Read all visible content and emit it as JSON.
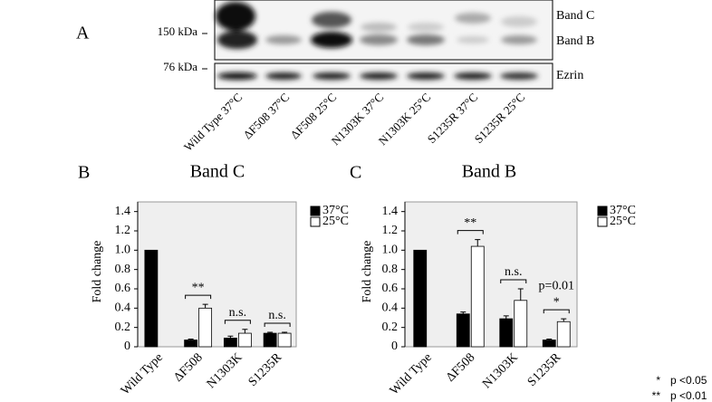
{
  "panel_a": {
    "label": "A",
    "markers": [
      "150 kDa",
      "76 kDa"
    ],
    "bands": [
      "Band C",
      "Band B",
      "Ezrin"
    ],
    "lanes": [
      "Wild Type 37°C",
      "ΔF508 37°C",
      "ΔF508 25°C",
      "N1303K 37°C",
      "N1303K 25°C",
      "S1235R 37°C",
      "S1235R 25°C"
    ]
  },
  "chart_data": [
    {
      "type": "bar",
      "panel": "B",
      "title": "Band C",
      "y_label": "Fold change",
      "categories": [
        "Wild Type",
        "ΔF508",
        "N1303K",
        "S1235R"
      ],
      "series": [
        {
          "name": "37°C",
          "color": "#000000",
          "values": [
            1.0,
            0.07,
            0.09,
            0.14
          ],
          "errors": [
            null,
            0.01,
            0.02,
            0.01
          ]
        },
        {
          "name": "25°C",
          "color": "#ffffff",
          "values": [
            null,
            0.4,
            0.14,
            0.14
          ],
          "errors": [
            null,
            0.04,
            0.04,
            0.01
          ]
        }
      ],
      "annotations": [
        null,
        "**",
        "n.s.",
        "n.s."
      ],
      "notes": [
        null,
        null,
        null,
        null
      ],
      "ylim": [
        0,
        1.5
      ],
      "yticks": [
        0,
        0.2,
        0.4,
        0.6,
        0.8,
        {
          "value": 1,
          "label": "1.0"
        },
        1.2,
        1.4
      ]
    },
    {
      "type": "bar",
      "panel": "C",
      "title": "Band B",
      "y_label": "Fold change",
      "categories": [
        "Wild Type",
        "ΔF508",
        "N1303K",
        "S1235R"
      ],
      "series": [
        {
          "name": "37°C",
          "color": "#000000",
          "values": [
            1.0,
            0.34,
            0.29,
            0.07
          ],
          "errors": [
            null,
            0.02,
            0.03,
            0.01
          ]
        },
        {
          "name": "25°C",
          "color": "#ffffff",
          "values": [
            null,
            1.04,
            0.48,
            0.26
          ],
          "errors": [
            null,
            0.07,
            0.12,
            0.03
          ]
        }
      ],
      "annotations": [
        null,
        "**",
        "n.s.",
        "*"
      ],
      "notes": [
        null,
        null,
        null,
        "p=0.01"
      ],
      "ylim": [
        0,
        1.5
      ],
      "yticks": [
        0,
        0.2,
        0.4,
        0.6,
        0.8,
        {
          "value": 1,
          "label": "1.0"
        },
        1.2,
        1.4
      ]
    }
  ],
  "footnote": [
    {
      "symbol": "*",
      "text": "p <0.05"
    },
    {
      "symbol": "**",
      "text": "p <0.01"
    }
  ]
}
